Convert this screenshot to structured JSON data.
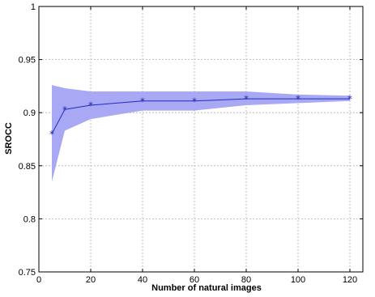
{
  "chart_data": {
    "type": "line",
    "title": "",
    "xlabel": "Number of natural images",
    "ylabel": "SROCC",
    "xlim": [
      0,
      125
    ],
    "ylim": [
      0.75,
      1.0
    ],
    "xticks": [
      0,
      20,
      40,
      60,
      80,
      100,
      120
    ],
    "xtick_labels": [
      "0",
      "20",
      "40",
      "60",
      "80",
      "100",
      "120"
    ],
    "yticks": [
      0.75,
      0.8,
      0.85,
      0.9,
      0.95,
      1.0
    ],
    "ytick_labels": [
      "0.75",
      "0.8",
      "0.85",
      "0.9",
      "0.95",
      "1"
    ],
    "grid": true,
    "series": [
      {
        "x": [
          5,
          10,
          20,
          40,
          60,
          80,
          100,
          120
        ],
        "y": [
          0.88,
          0.903,
          0.907,
          0.911,
          0.911,
          0.913,
          0.913,
          0.913
        ],
        "upper": [
          0.926,
          0.923,
          0.92,
          0.92,
          0.92,
          0.92,
          0.917,
          0.916
        ],
        "lower": [
          0.835,
          0.883,
          0.894,
          0.902,
          0.902,
          0.907,
          0.909,
          0.911
        ],
        "marker": "star"
      }
    ],
    "colors": {
      "line": "#1f2fbf",
      "band": "#a8a8f4",
      "grid": "#b0b0b0",
      "axis": "#000000"
    }
  }
}
